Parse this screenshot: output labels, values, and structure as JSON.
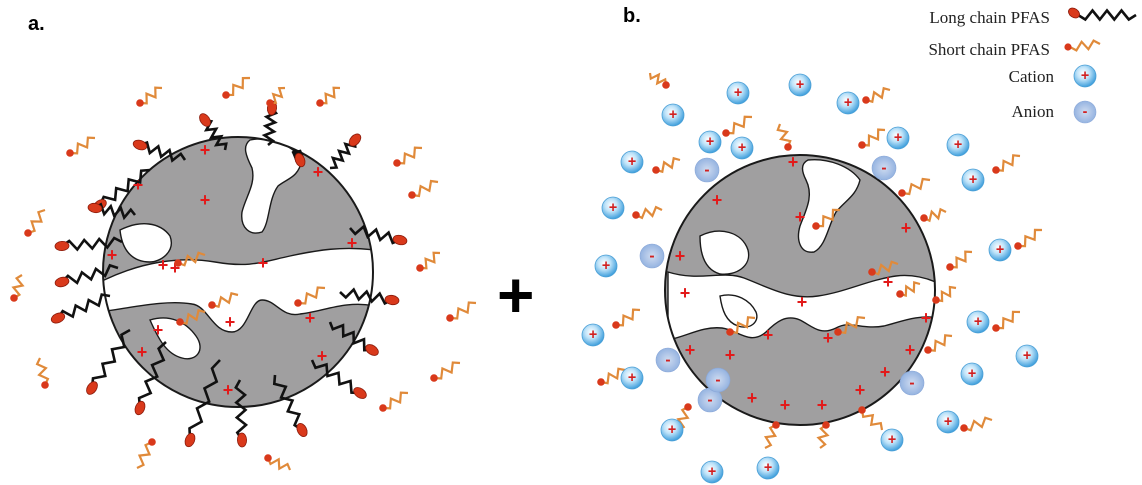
{
  "panels": {
    "a": {
      "label": "a."
    },
    "b": {
      "label": "b."
    }
  },
  "operator": "+",
  "legend": {
    "long_chain": {
      "label": "Long chain PFAS",
      "icon": "long-chain-pfas-icon"
    },
    "short_chain": {
      "label": "Short chain PFAS",
      "icon": "short-chain-pfas-icon"
    },
    "cation": {
      "label": "Cation",
      "symbol": "+",
      "icon": "cation-icon"
    },
    "anion": {
      "label": "Anion",
      "symbol": "-",
      "icon": "anion-icon"
    }
  },
  "symbols": {
    "surface_charge": "+",
    "cation": "+",
    "anion": "-"
  },
  "colors": {
    "particle_fill": "#a09fa0",
    "particle_stroke": "#1a1a1a",
    "long_chain": "#111111",
    "short_chain": "#e08a3a",
    "head_group": "#d9391b",
    "cation_fill": "#7cc3ef",
    "anion_fill": "#9fb8e0",
    "charge": "#e21a1a"
  }
}
